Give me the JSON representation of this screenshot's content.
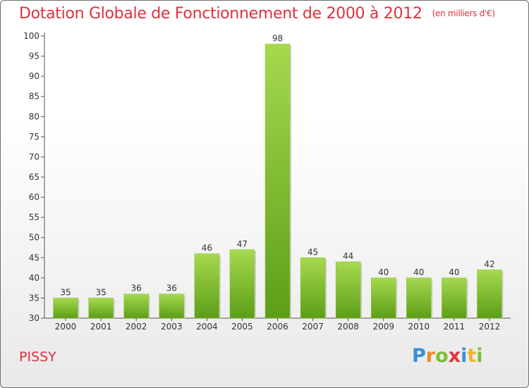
{
  "title": "Dotation Globale de Fonctionnement de 2000 à 2012",
  "unit": "(en milliers d'€)",
  "commune": "PISSY",
  "logo": {
    "letters": [
      "P",
      "r",
      "o",
      "x",
      "i",
      "t",
      "i"
    ],
    "colors": [
      "#3a8fd6",
      "#f08a24",
      "#7cbf3a",
      "#e2303c",
      "#3a8fd6",
      "#f0b428",
      "#7cbf3a"
    ]
  },
  "colors": {
    "bar_light": "#a6d94e",
    "bar_dark": "#5c9e18",
    "title": "#e2303c"
  },
  "chart_data": {
    "type": "bar",
    "categories": [
      "2000",
      "2001",
      "2002",
      "2003",
      "2004",
      "2005",
      "2006",
      "2007",
      "2008",
      "2009",
      "2010",
      "2011",
      "2012"
    ],
    "values": [
      35,
      35,
      36,
      36,
      46,
      47,
      98,
      45,
      44,
      40,
      40,
      40,
      42
    ],
    "title": "Dotation Globale de Fonctionnement de 2000 à 2012",
    "ylim": [
      30,
      100
    ],
    "yticks": [
      30,
      35,
      40,
      45,
      50,
      55,
      60,
      65,
      70,
      75,
      80,
      85,
      90,
      95,
      100
    ],
    "grid": false,
    "legend": "none"
  }
}
